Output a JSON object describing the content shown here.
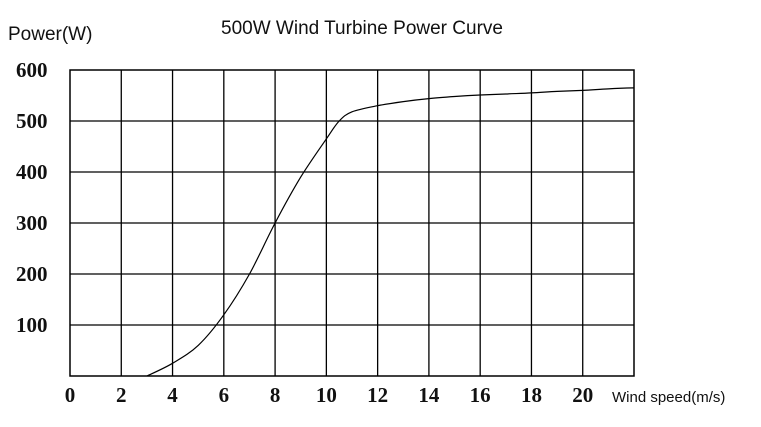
{
  "chart_data": {
    "type": "line",
    "title": "500W Wind Turbine Power Curve",
    "ylabel": "Power(W)",
    "xlabel": "Wind speed(m/s)",
    "xlim": [
      0,
      22
    ],
    "ylim": [
      0,
      600
    ],
    "x_ticks": [
      0,
      2,
      4,
      6,
      8,
      10,
      12,
      14,
      16,
      18,
      20
    ],
    "y_ticks": [
      100,
      200,
      300,
      400,
      500,
      600
    ],
    "grid": true,
    "series": [
      {
        "values": [
          [
            3,
            0
          ],
          [
            4,
            25
          ],
          [
            5,
            60
          ],
          [
            6,
            120
          ],
          [
            7,
            200
          ],
          [
            8,
            300
          ],
          [
            9,
            390
          ],
          [
            10,
            465
          ],
          [
            10.5,
            500
          ],
          [
            11,
            518
          ],
          [
            12,
            530
          ],
          [
            13,
            538
          ],
          [
            14,
            544
          ],
          [
            15,
            548
          ],
          [
            16,
            551
          ],
          [
            17,
            553
          ],
          [
            18,
            555
          ],
          [
            19,
            558
          ],
          [
            20,
            560
          ],
          [
            21,
            563
          ],
          [
            22,
            565
          ]
        ]
      }
    ]
  }
}
